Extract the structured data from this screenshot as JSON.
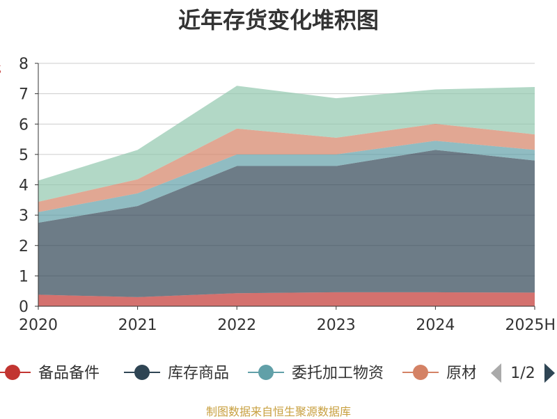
{
  "title": "近年存货变化堆积图",
  "source_note": "制图数据来自恒生聚源数据库",
  "legend_page": "1/2",
  "chart_data": {
    "type": "area",
    "stacked": true,
    "title": "近年存货变化堆积图",
    "ylabel": "亿",
    "categories": [
      "2020",
      "2021",
      "2022",
      "2023",
      "2024",
      "2025H"
    ],
    "ylim": [
      0,
      8
    ],
    "yticks": [
      0,
      1,
      2,
      3,
      4,
      5,
      6,
      7,
      8
    ],
    "grid": true,
    "legend_position": "bottom",
    "series": [
      {
        "name": "备品备件",
        "color": "#c23531",
        "values": [
          0.38,
          0.3,
          0.43,
          0.46,
          0.46,
          0.45
        ]
      },
      {
        "name": "库存商品",
        "color": "#2f4554",
        "values": [
          2.37,
          3.0,
          4.19,
          4.16,
          4.69,
          4.35
        ]
      },
      {
        "name": "委托加工物资",
        "color": "#61a0a8",
        "values": [
          0.35,
          0.42,
          0.38,
          0.38,
          0.3,
          0.35
        ]
      },
      {
        "name": "原材料",
        "color": "#d48265",
        "values": [
          0.34,
          0.46,
          0.85,
          0.55,
          0.56,
          0.51
        ]
      },
      {
        "name": "",
        "color": "#91c7ae",
        "values": [
          0.7,
          0.97,
          1.41,
          1.3,
          1.13,
          1.56
        ]
      }
    ]
  }
}
